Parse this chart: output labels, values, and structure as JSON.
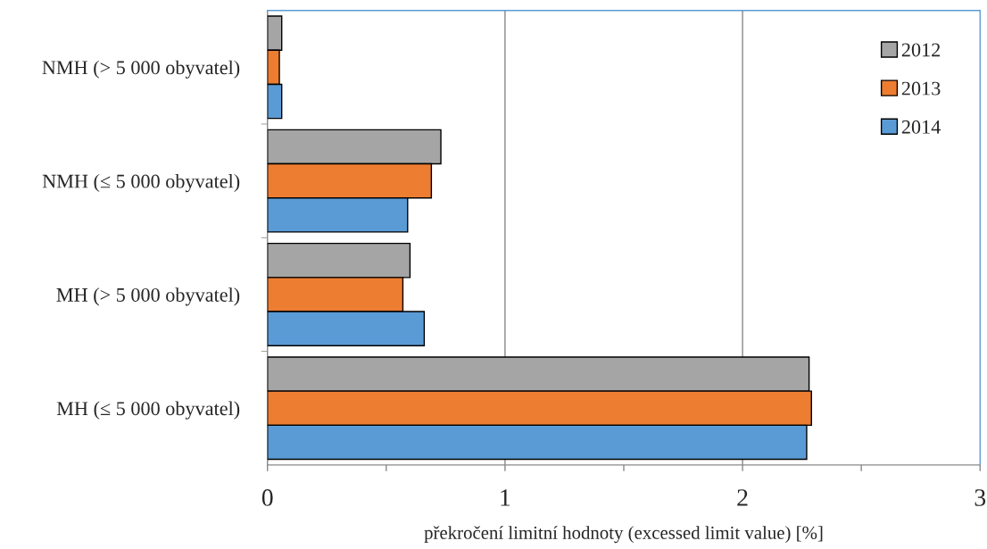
{
  "chart_data": {
    "type": "bar",
    "orientation": "horizontal",
    "xlabel": "překročení limitní hodnoty (excessed limit value) [%]",
    "categories": [
      "NMH (> 5 000 obyvatel)",
      "NMH (≤ 5 000 obyvatel)",
      "MH (> 5 000 obyvatel)",
      "MH (≤ 5 000 obyvatel)"
    ],
    "series": [
      {
        "name": "2012",
        "color": "#a5a5a5",
        "values": [
          0.06,
          0.73,
          0.6,
          2.28
        ]
      },
      {
        "name": "2013",
        "color": "#ed7d31",
        "values": [
          0.05,
          0.69,
          0.57,
          2.29
        ]
      },
      {
        "name": "2014",
        "color": "#5b9bd5",
        "values": [
          0.06,
          0.59,
          0.66,
          2.27
        ]
      }
    ],
    "xlim": [
      0,
      3
    ],
    "xticks": [
      0,
      {
        "value": 0.5,
        "label": null
      },
      1,
      {
        "value": 1.5,
        "label": null
      },
      2,
      {
        "value": 2.5,
        "label": null
      },
      3
    ],
    "grid": "x",
    "legend": "top right"
  }
}
